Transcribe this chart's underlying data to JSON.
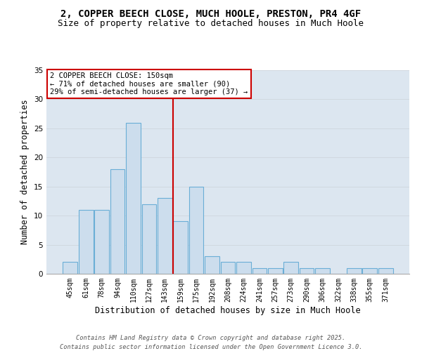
{
  "title": "2, COPPER BEECH CLOSE, MUCH HOOLE, PRESTON, PR4 4GF",
  "subtitle": "Size of property relative to detached houses in Much Hoole",
  "xlabel": "Distribution of detached houses by size in Much Hoole",
  "ylabel": "Number of detached properties",
  "bar_labels": [
    "45sqm",
    "61sqm",
    "78sqm",
    "94sqm",
    "110sqm",
    "127sqm",
    "143sqm",
    "159sqm",
    "175sqm",
    "192sqm",
    "208sqm",
    "224sqm",
    "241sqm",
    "257sqm",
    "273sqm",
    "290sqm",
    "306sqm",
    "322sqm",
    "338sqm",
    "355sqm",
    "371sqm"
  ],
  "bar_values": [
    2,
    11,
    11,
    18,
    26,
    12,
    13,
    9,
    15,
    3,
    2,
    2,
    1,
    1,
    2,
    1,
    1,
    0,
    1,
    1,
    1
  ],
  "bar_color": "#ccdded",
  "bar_edge_color": "#6aaed6",
  "ref_line_color": "#cc0000",
  "ref_line_index": 6.5,
  "annotation_text": "2 COPPER BEECH CLOSE: 150sqm\n← 71% of detached houses are smaller (90)\n29% of semi-detached houses are larger (37) →",
  "annotation_box_facecolor": "white",
  "annotation_box_edgecolor": "#cc0000",
  "ylim": [
    0,
    35
  ],
  "yticks": [
    0,
    5,
    10,
    15,
    20,
    25,
    30,
    35
  ],
  "grid_color": "#d0d8e0",
  "bg_color": "#dce6f0",
  "footer1": "Contains HM Land Registry data © Crown copyright and database right 2025.",
  "footer2": "Contains public sector information licensed under the Open Government Licence 3.0.",
  "title_fontsize": 10,
  "subtitle_fontsize": 9,
  "tick_fontsize": 7,
  "ylabel_fontsize": 8.5,
  "xlabel_fontsize": 8.5,
  "annotation_fontsize": 7.5
}
